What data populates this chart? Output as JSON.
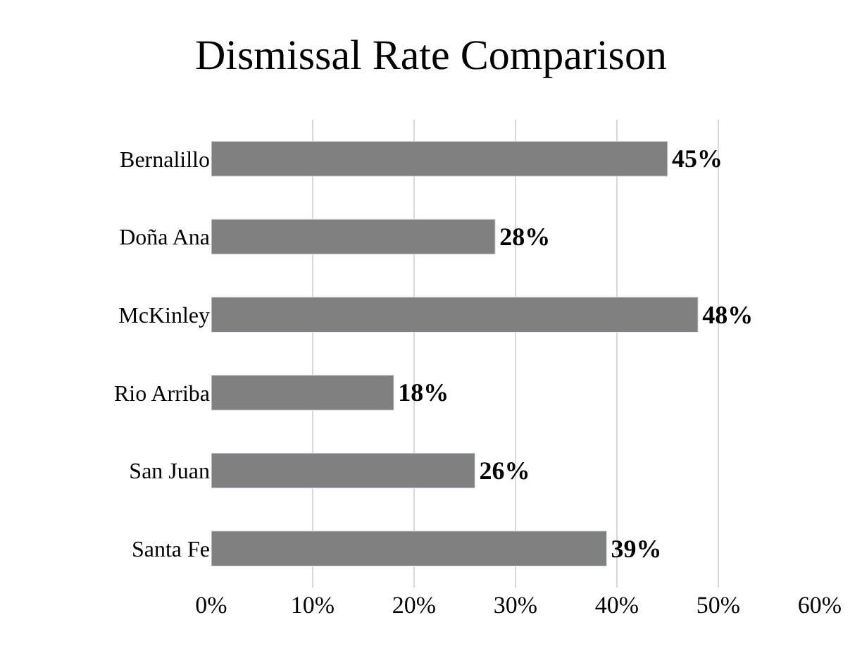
{
  "chart_data": {
    "type": "bar",
    "orientation": "horizontal",
    "title": "Dismissal Rate Comparison",
    "categories": [
      "Bernalillo",
      "Doña Ana",
      "McKinley",
      "Rio Arriba",
      "San Juan",
      "Santa Fe"
    ],
    "values": [
      45,
      28,
      48,
      18,
      26,
      39
    ],
    "value_labels": [
      "45%",
      "28%",
      "48%",
      "18%",
      "26%",
      "39%"
    ],
    "color": "#808080",
    "xlim": [
      0,
      60
    ],
    "xticks": [
      {
        "value": 0,
        "label": "0%"
      },
      {
        "value": 10,
        "label": "10%"
      },
      {
        "value": 20,
        "label": "20%"
      },
      {
        "value": 30,
        "label": "30%"
      },
      {
        "value": 40,
        "label": "40%"
      },
      {
        "value": 50,
        "label": "50%"
      },
      {
        "value": 60,
        "label": "60%"
      }
    ],
    "grid": "x",
    "legend": false
  }
}
